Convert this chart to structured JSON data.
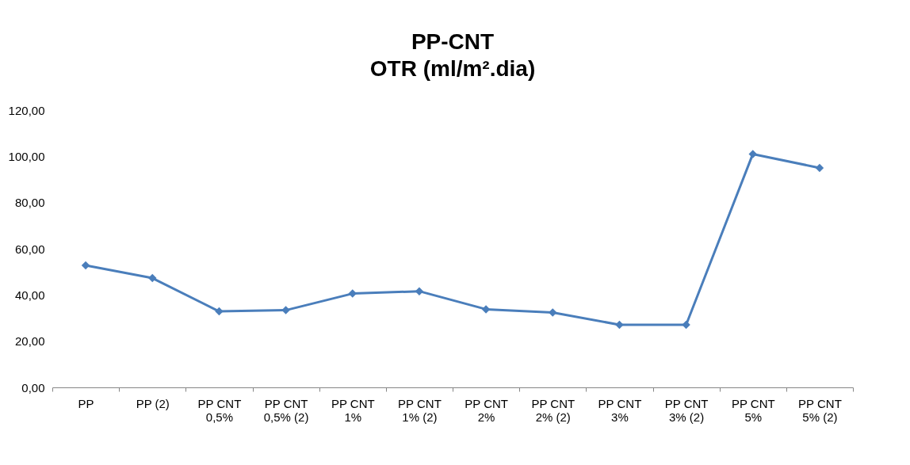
{
  "chart_data": {
    "type": "line",
    "title": "PP-CNT",
    "subtitle": "OTR (ml/m².dia)",
    "categories": [
      "PP",
      "PP (2)",
      "PP CNT 0,5%",
      "PP CNT 0,5% (2)",
      "PP CNT 1%",
      "PP CNT 1% (2)",
      "PP CNT 2%",
      "PP CNT 2% (2)",
      "PP CNT 3%",
      "PP CNT 3% (2)",
      "PP CNT 5%",
      "PP CNT 5% (2)"
    ],
    "series": [
      {
        "color": "#4a7ebb",
        "values": [
          52.8,
          47.3,
          32.9,
          33.4,
          40.6,
          41.6,
          33.8,
          32.4,
          27.1,
          27.1,
          101.0,
          95.0
        ]
      }
    ],
    "ylim": [
      0,
      120
    ],
    "yticks": [
      {
        "value": 0,
        "label": "0,00"
      },
      {
        "value": 20,
        "label": "20,00"
      },
      {
        "value": 40,
        "label": "40,00"
      },
      {
        "value": 60,
        "label": "60,00"
      },
      {
        "value": 80,
        "label": "80,00"
      },
      {
        "value": 100,
        "label": "100,00"
      },
      {
        "value": 120,
        "label": "120,00"
      }
    ],
    "grid": false,
    "legend": false,
    "marker": "diamond",
    "line_style": "solid"
  }
}
